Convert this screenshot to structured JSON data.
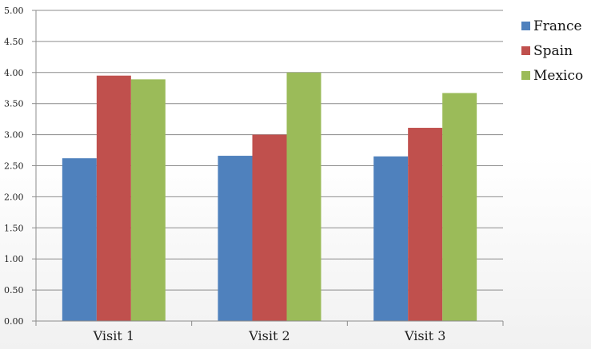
{
  "chart_data": {
    "type": "bar",
    "title": "",
    "xlabel": "",
    "ylabel": "",
    "categories": [
      "Visit 1",
      "Visit 2",
      "Visit 3"
    ],
    "series": [
      {
        "name": "France",
        "color": "#4f81bd",
        "values": [
          2.62,
          2.66,
          2.65
        ]
      },
      {
        "name": "Spain",
        "color": "#c0504d",
        "values": [
          3.95,
          3.0,
          3.11
        ]
      },
      {
        "name": "Mexico",
        "color": "#9bbb59",
        "values": [
          3.89,
          4.0,
          3.67
        ]
      }
    ],
    "ylim": [
      0,
      5
    ],
    "yticks": [
      "0.00",
      "0.50",
      "1.00",
      "1.50",
      "2.00",
      "2.50",
      "3.00",
      "3.50",
      "4.00",
      "4.50",
      "5.00"
    ],
    "grid": true,
    "legend_position": "right"
  }
}
